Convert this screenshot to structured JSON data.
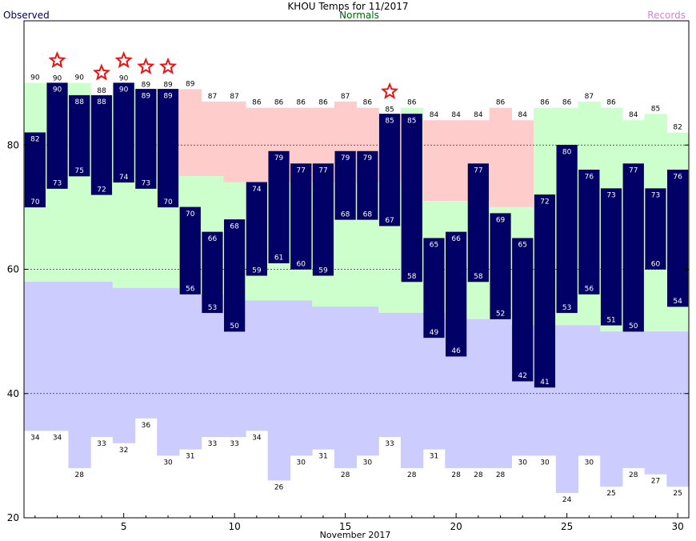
{
  "chart_data": {
    "type": "bar",
    "title": "KHOU Temps for 11/2017",
    "legend": {
      "observed": "Observed",
      "normals": "Normals",
      "records": "Records",
      "observed_color": "#000066",
      "normals_color": "#006600",
      "records_color": "#cc88cc"
    },
    "xlabel": "November 2017",
    "ylabel": "",
    "xlim": [
      0.5,
      30.5
    ],
    "ylim": [
      20,
      100
    ],
    "x_ticks": [
      5,
      10,
      15,
      20,
      25,
      30
    ],
    "y_ticks": [
      20,
      40,
      60,
      80
    ],
    "gridlines_dashed": [
      40,
      60,
      80
    ],
    "colors": {
      "observed_bar": "#000066",
      "record_high_band": "#ffcccc",
      "normal_band": "#ccffcc",
      "record_low_band": "#ccccff",
      "record_star": "#ee1111"
    },
    "days": [
      1,
      2,
      3,
      4,
      5,
      6,
      7,
      8,
      9,
      10,
      11,
      12,
      13,
      14,
      15,
      16,
      17,
      18,
      19,
      20,
      21,
      22,
      23,
      24,
      25,
      26,
      27,
      28,
      29,
      30
    ],
    "observed_high": [
      82,
      90,
      88,
      88,
      90,
      89,
      89,
      70,
      66,
      68,
      74,
      79,
      77,
      77,
      79,
      79,
      85,
      85,
      65,
      66,
      77,
      69,
      65,
      72,
      80,
      76,
      73,
      77,
      73,
      76
    ],
    "observed_low": [
      70,
      73,
      75,
      72,
      74,
      73,
      70,
      56,
      53,
      50,
      59,
      61,
      60,
      59,
      68,
      68,
      67,
      58,
      49,
      46,
      58,
      52,
      42,
      41,
      53,
      56,
      51,
      50,
      60,
      54
    ],
    "record_high": [
      90,
      90,
      90,
      88,
      90,
      89,
      89,
      89,
      87,
      87,
      86,
      86,
      86,
      86,
      87,
      86,
      85,
      86,
      84,
      84,
      84,
      86,
      84,
      86,
      86,
      87,
      86,
      84,
      85,
      82
    ],
    "normal_high": [
      null,
      null,
      null,
      null,
      null,
      null,
      null,
      75,
      75,
      74,
      74,
      74,
      74,
      74,
      74,
      74,
      74,
      null,
      71,
      71,
      71,
      70,
      70,
      null,
      null,
      null,
      null,
      null,
      null,
      null
    ],
    "normal_low": [
      58,
      58,
      58,
      58,
      57,
      57,
      57,
      56,
      56,
      55,
      55,
      55,
      55,
      54,
      54,
      54,
      53,
      53,
      53,
      52,
      52,
      52,
      51,
      51,
      51,
      51,
      50,
      50,
      50,
      50
    ],
    "record_low": [
      34,
      34,
      28,
      33,
      32,
      36,
      30,
      31,
      33,
      33,
      34,
      26,
      30,
      31,
      28,
      30,
      33,
      28,
      31,
      28,
      28,
      28,
      30,
      30,
      24,
      30,
      25,
      28,
      27,
      25
    ],
    "record_set_days": [
      2,
      4,
      5,
      6,
      7,
      17
    ]
  }
}
